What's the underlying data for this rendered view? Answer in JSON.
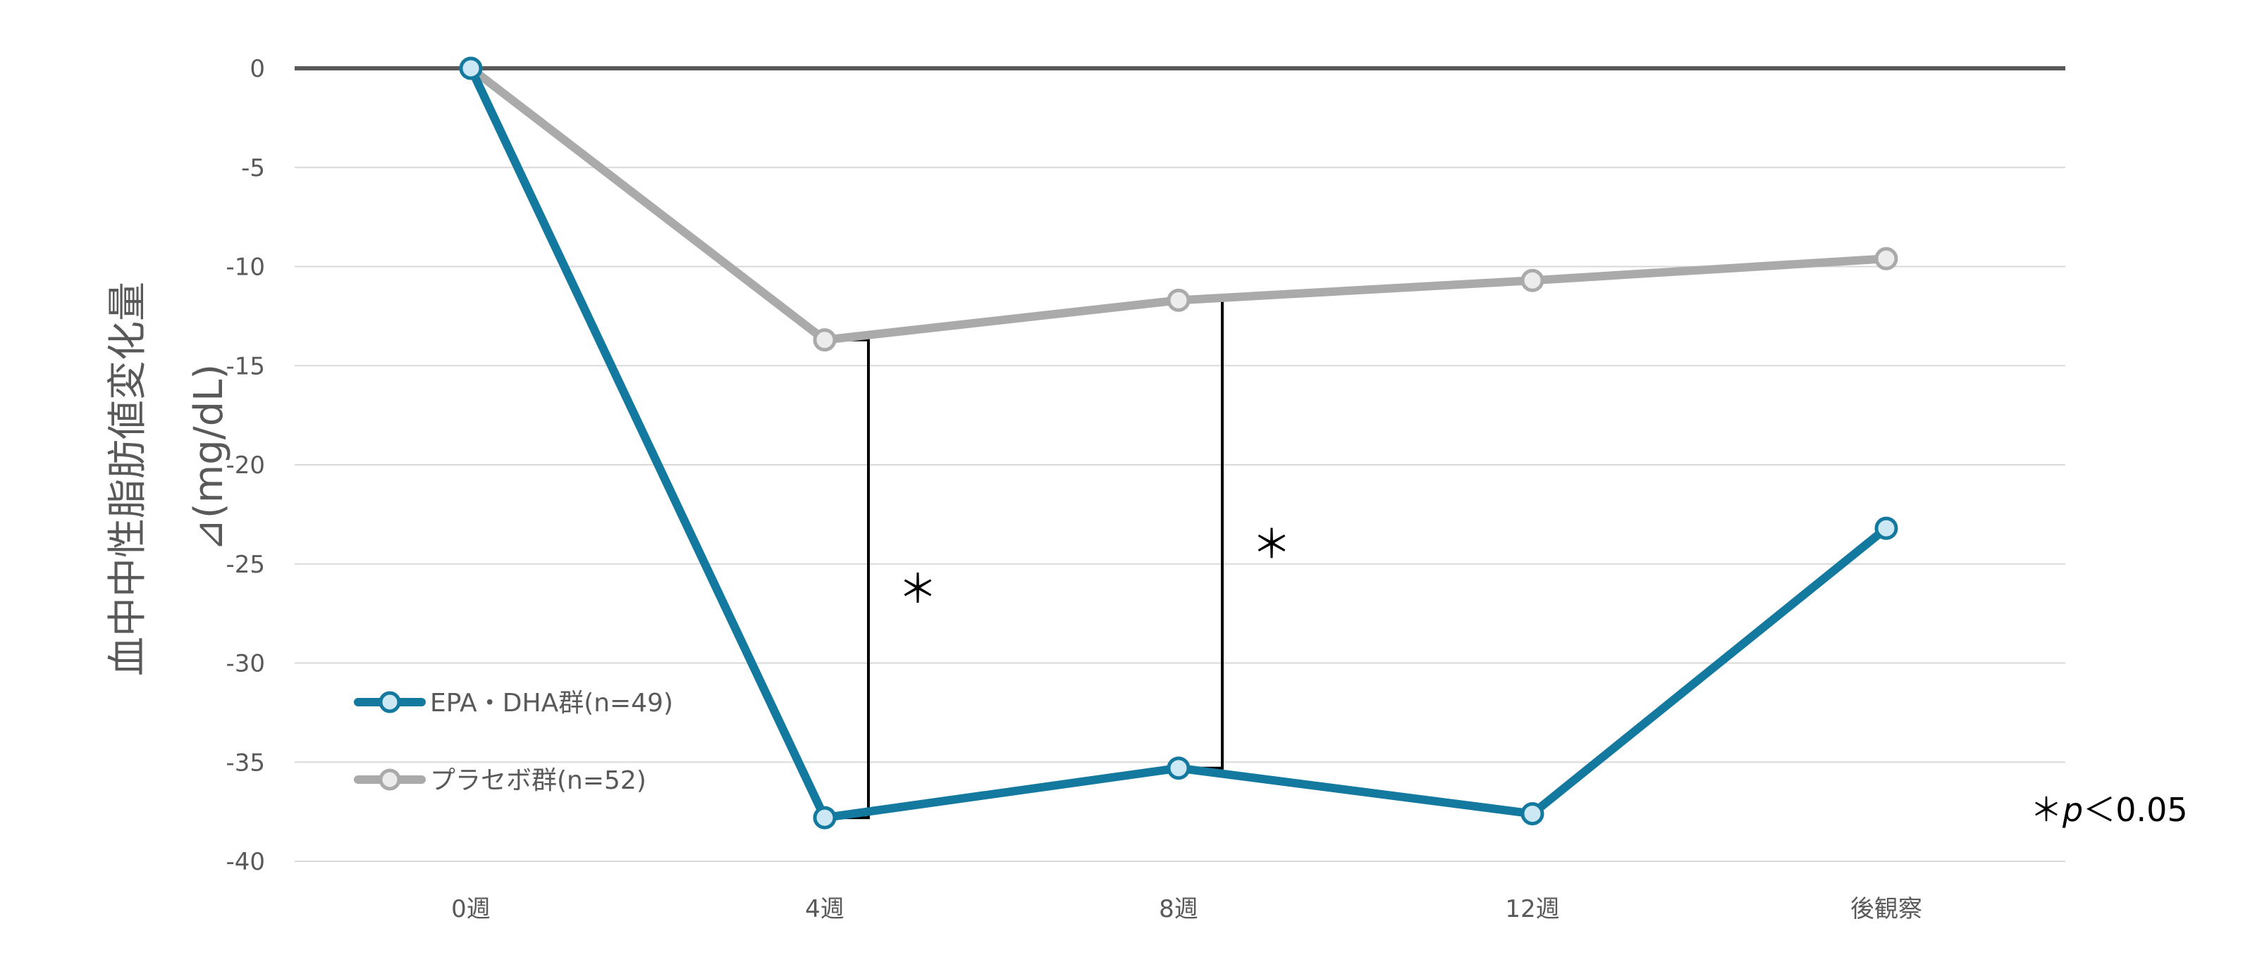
{
  "chart_data": {
    "type": "line",
    "categories": [
      "0週",
      "4週",
      "8週",
      "12週",
      "後観察"
    ],
    "series": [
      {
        "name": "EPA・DHA群(n=49)",
        "values": [
          0,
          -37.8,
          -35.3,
          -37.6,
          -23.2
        ],
        "color": "#13799f",
        "marker_fill": "#cce8f4"
      },
      {
        "name": "プラセボ群(n=52)",
        "values": [
          0,
          -13.7,
          -11.7,
          -10.7,
          -9.6
        ],
        "color": "#aaaaaa",
        "marker_fill": "#ececec"
      }
    ],
    "ylim": [
      -40,
      0
    ],
    "yticks": [
      0,
      -5,
      -10,
      -15,
      -20,
      -25,
      -30,
      -35,
      -40
    ],
    "ytick_labels": [
      "0",
      "-5",
      "-10",
      "-15",
      "-20",
      "-25",
      "-30",
      "-35",
      "-40"
    ],
    "ylabel_line1": "血中中性脂肪値変化量",
    "ylabel_line2": "⊿(mg/dL)",
    "title": "",
    "xlabel": "",
    "grid": true,
    "legend_position": "bottom-left",
    "significance": [
      {
        "category_index": 1,
        "label": "＊"
      },
      {
        "category_index": 2,
        "label": "＊"
      }
    ],
    "p_note": {
      "star": "＊",
      "p": "p",
      "rest": "＜0.05"
    }
  }
}
